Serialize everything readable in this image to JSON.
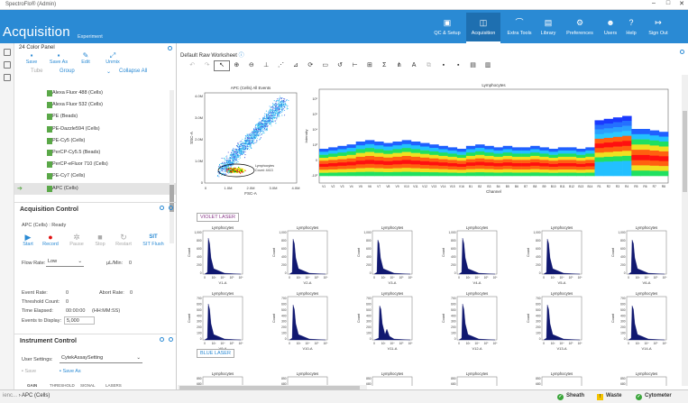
{
  "window": {
    "title": "SpectroFlo® (Admin)"
  },
  "ribbon": {
    "app_title": "Acquisition",
    "app_subtitle": "Experiment",
    "buttons": [
      {
        "label": "QC & Setup",
        "icon": "qc-icon"
      },
      {
        "label": "Acquisition",
        "icon": "acquisition-icon",
        "active": true
      },
      {
        "label": "Extra Tools",
        "icon": "tools-icon"
      },
      {
        "label": "Library",
        "icon": "library-icon"
      },
      {
        "label": "Preferences",
        "icon": "gear-icon"
      },
      {
        "label": "Users",
        "icon": "users-icon"
      },
      {
        "label": "Help",
        "icon": "help-icon"
      },
      {
        "label": "Sign Out",
        "icon": "sign-out-icon"
      }
    ]
  },
  "panel": {
    "title": "24 Color Panel",
    "toolbar": [
      "Save",
      "Save As",
      "Edit",
      "Unmix"
    ],
    "toolbar2": {
      "tube": "Tube",
      "group": "Group",
      "collapse": "Collapse All"
    },
    "tree": [
      "Alexa Fluor 488 (Cells)",
      "Alexa Fluor 532 (Cells)",
      "PE (Beads)",
      "PE-Dazzle594 (Cells)",
      "PE-Cy5 (Cells)",
      "PerCP-Cy5.5 (Beads)",
      "PerCP-eFluor 710 (Cells)",
      "PE-Cy7 (Cells)",
      "APC (Cells)"
    ],
    "selected_index": 8
  },
  "acq": {
    "title": "Acquisition Control",
    "status": "APC (Cells) : Ready",
    "controls": [
      {
        "label": "Start"
      },
      {
        "label": "Record"
      },
      {
        "label": "Pause"
      },
      {
        "label": "Stop"
      },
      {
        "label": "Restart"
      },
      {
        "label": "SIT Flush",
        "short": "SIT"
      }
    ],
    "flow_rate_label": "Flow Rate:",
    "flow_rate": "Low",
    "flow_unit": "µL/Min:",
    "flow_value": "0",
    "event_rate_label": "Event Rate:",
    "event_rate": "0",
    "abort_rate_label": "Abort Rate:",
    "abort_rate": "0",
    "threshold_label": "Threshold Count:",
    "threshold": "0",
    "time_label": "Time Elapsed:",
    "time": "00:00:00",
    "time_fmt": "(HH:MM:SS)",
    "events_label": "Events to Display:",
    "events": "5,000"
  },
  "instr": {
    "title": "Instrument Control",
    "settings_label": "User Settings:",
    "settings_value": "CytekAssaySetting",
    "save": "Save",
    "save_as": "Save As",
    "tabs": [
      "GAIN",
      "THRESHOLD",
      "SIGNAL",
      "LASERS"
    ]
  },
  "worksheet": {
    "title": "Default Raw Worksheet",
    "scatter": {
      "title": "APC (Cells) All Events",
      "x_label": "FSC-A",
      "y_label": "SSC-A",
      "x_ticks": [
        "0",
        "1.0M",
        "2.0M",
        "3.0M",
        "4.0M"
      ],
      "y_ticks": [
        "0",
        "1.0M",
        "2.0M",
        "3.0M",
        "4.0M"
      ],
      "gate_name": "Lymphocytes",
      "gate_count": "Count: 4413"
    },
    "spectrum": {
      "title": "Lymphocytes",
      "x_label": "Channel",
      "y_label": "Intensity",
      "y_ticks": [
        "10⁶",
        "10⁵",
        "10⁴",
        "10³",
        "0",
        "-10³"
      ],
      "channels": [
        "V1",
        "V2",
        "V3",
        "V4",
        "V5",
        "V6",
        "V7",
        "V8",
        "V9",
        "V10",
        "V11",
        "V12",
        "V13",
        "V14",
        "V15",
        "V16",
        "B1",
        "B2",
        "B3",
        "B4",
        "B5",
        "B6",
        "B7",
        "B8",
        "B9",
        "B10",
        "B11",
        "B12",
        "B13",
        "B14",
        "R1",
        "R2",
        "R3",
        "R4",
        "R5",
        "R6",
        "R7",
        "R8"
      ]
    },
    "violet_laser": "VIOLET LASER",
    "blue_laser": "BLUE LASER",
    "hist_title": "Lymphocytes",
    "hist_y_label": "Count",
    "hist_x_ticks": [
      "0",
      "10³",
      "10⁴",
      "10⁵",
      "10⁶"
    ],
    "hist_row1": {
      "y_ticks": [
        "1,000",
        "800",
        "600",
        "400",
        "200",
        "0"
      ],
      "x_labels": [
        "V1-A",
        "V2-A",
        "V3-A",
        "V4-A",
        "V5-A",
        "V6-A"
      ]
    },
    "hist_row2": {
      "y_ticks": [
        "700",
        "600",
        "500",
        "400",
        "300",
        "200",
        "100",
        "0"
      ],
      "x_labels": [
        "V9-A",
        "V10-A",
        "V11-A",
        "V12-A",
        "V13-A",
        "V14-A"
      ]
    },
    "hist_row3": {
      "y_ticks": [
        "850",
        "680"
      ]
    }
  },
  "statusbar": {
    "crumb_prefix": "ienc...",
    "crumb": "APC (Cells)",
    "sheath": "Sheath",
    "waste": "Waste",
    "cytometer": "Cytometer"
  },
  "colors": {
    "accent": "#2a8ad4",
    "ok": "#3aa53a",
    "warn": "#f5c400"
  }
}
